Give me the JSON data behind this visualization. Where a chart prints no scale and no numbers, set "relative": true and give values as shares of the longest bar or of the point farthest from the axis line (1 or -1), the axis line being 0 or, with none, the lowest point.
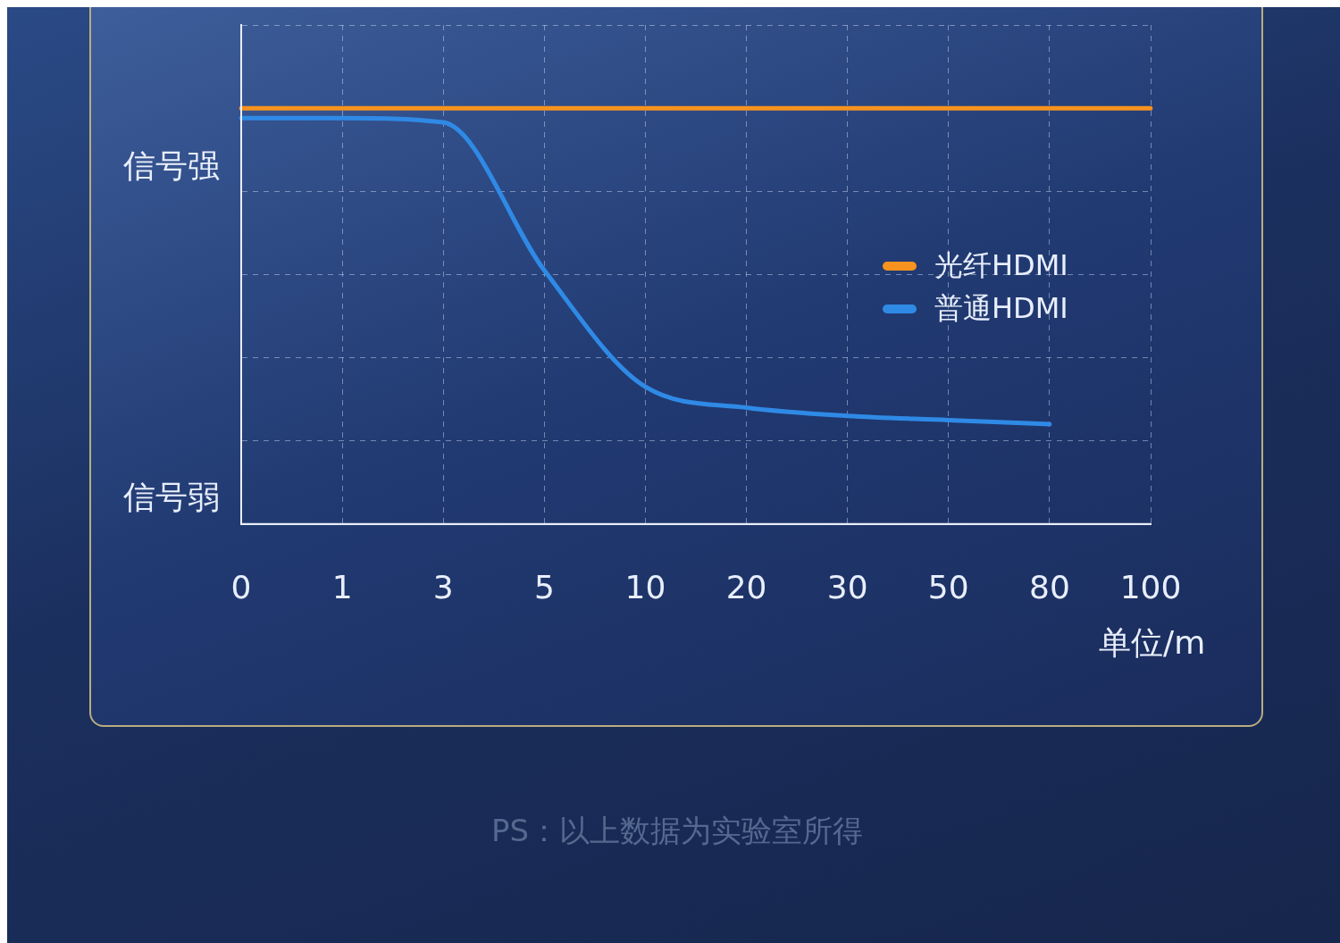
{
  "chart_data": {
    "type": "line",
    "relative": true,
    "categories": [
      "0",
      "1",
      "3",
      "5",
      "10",
      "20",
      "30",
      "50",
      "80",
      "100"
    ],
    "xlabel": "单位/m",
    "series": [
      {
        "name": "光纤HDMI",
        "color": "#f7931e",
        "values": [
          1,
          1,
          1,
          1,
          1,
          1,
          1,
          1,
          1,
          1
        ]
      },
      {
        "name": "普通HDMI",
        "color": "#2f8ae6",
        "values": [
          0.976,
          0.976,
          0.966,
          0.61,
          0.33,
          0.28,
          0.26,
          0.25,
          0.24,
          null
        ]
      }
    ],
    "annotations": [
      "信号强",
      "信号弱",
      "PS：以上数据为实验室所得"
    ],
    "grid": true,
    "legend": "top right",
    "marker": "none",
    "line_style": "solid"
  }
}
